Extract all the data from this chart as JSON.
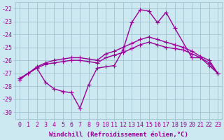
{
  "series": [
    {
      "x": [
        0,
        1,
        2,
        3,
        4,
        5,
        6,
        7,
        8,
        9,
        10,
        11,
        12,
        13,
        14,
        15,
        16,
        17,
        18,
        19,
        20,
        21,
        22,
        23
      ],
      "y": [
        -27.5,
        -27.0,
        -26.6,
        -26.3,
        -26.2,
        -26.1,
        -26.0,
        -26.0,
        -26.1,
        -26.2,
        -25.8,
        -25.6,
        -25.4,
        -25.1,
        -24.8,
        -24.6,
        -24.8,
        -25.0,
        -25.1,
        -25.2,
        -25.5,
        -25.8,
        -26.2,
        -27.0
      ]
    },
    {
      "x": [
        0,
        1,
        2,
        3,
        4,
        5,
        6,
        7,
        8,
        9,
        10,
        11,
        12,
        13,
        14,
        15,
        16,
        17,
        18,
        19,
        20,
        21,
        22,
        23
      ],
      "y": [
        -27.4,
        -27.0,
        -26.5,
        -26.2,
        -26.0,
        -25.9,
        -25.8,
        -25.8,
        -25.9,
        -26.0,
        -25.5,
        -25.3,
        -25.0,
        -24.7,
        -24.4,
        -24.2,
        -24.4,
        -24.6,
        -24.8,
        -25.0,
        -25.3,
        -25.7,
        -26.0,
        -27.0
      ]
    },
    {
      "x": [
        0,
        2,
        3,
        4,
        5,
        6,
        7,
        8,
        9,
        10,
        11,
        12,
        13,
        14,
        15,
        16,
        17,
        18,
        20,
        21,
        22,
        23
      ],
      "y": [
        -27.4,
        -26.6,
        -27.7,
        -28.2,
        -28.4,
        -28.5,
        -29.7,
        -27.9,
        -26.6,
        -26.5,
        -26.4,
        -25.2,
        -23.1,
        -22.1,
        -22.2,
        -23.1,
        -22.3,
        -23.5,
        -25.8,
        -25.8,
        -26.4,
        -27.0
      ]
    }
  ],
  "xlim": [
    -0.5,
    23.5
  ],
  "ylim": [
    -30.5,
    -21.5
  ],
  "yticks": [
    -30,
    -29,
    -28,
    -27,
    -26,
    -25,
    -24,
    -23,
    -22
  ],
  "xticks": [
    0,
    1,
    2,
    3,
    4,
    5,
    6,
    7,
    8,
    9,
    10,
    11,
    12,
    13,
    14,
    15,
    16,
    17,
    18,
    19,
    20,
    21,
    22,
    23
  ],
  "xlabel": "Windchill (Refroidissement éolien,°C)",
  "line_color": "#990099",
  "bg_color": "#cce8f0",
  "grid_color": "#99bbcc",
  "marker": "+",
  "markersize": 4,
  "linewidth": 1.0,
  "xlabel_fontsize": 6.5,
  "tick_fontsize": 6.0
}
